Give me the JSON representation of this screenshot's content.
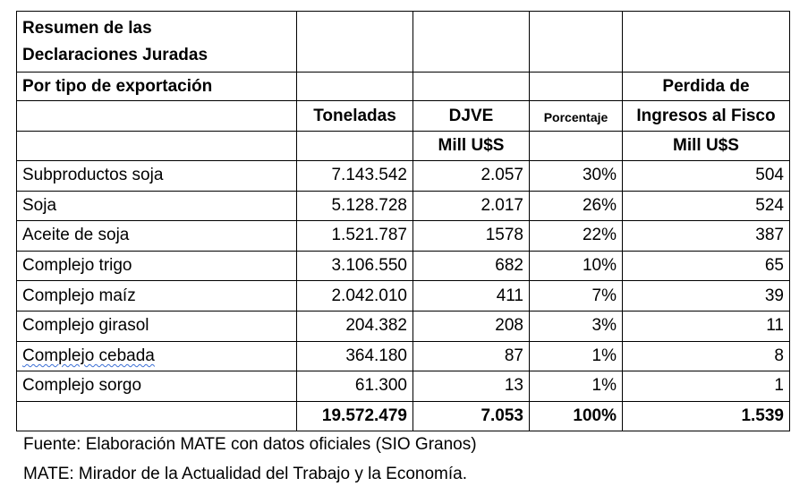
{
  "header": {
    "title_line1": "Resumen de las",
    "title_line2": "Declaraciones Juradas",
    "subtitle": "Por tipo de exportación",
    "perdida_line1": "Perdida de",
    "perdida_line2": "Ingresos al Fisco",
    "toneladas": "Toneladas",
    "djve": "DJVE",
    "porcentaje": "Porcentaje",
    "djve_unit": "Mill U$S",
    "perdida_unit": "Mill U$S"
  },
  "rows": [
    {
      "name": "Subproductos soja",
      "toneladas": "7.143.542",
      "djve": "2.057",
      "porcentaje": "30%",
      "perdida": "504"
    },
    {
      "name": "Soja",
      "toneladas": "5.128.728",
      "djve": "2.017",
      "porcentaje": "26%",
      "perdida": "524"
    },
    {
      "name": "Aceite de soja",
      "toneladas": "1.521.787",
      "djve": "1578",
      "porcentaje": "22%",
      "perdida": "387"
    },
    {
      "name": "Complejo trigo",
      "toneladas": "3.106.550",
      "djve": "682",
      "porcentaje": "10%",
      "perdida": "65"
    },
    {
      "name": "Complejo maíz",
      "toneladas": "2.042.010",
      "djve": "411",
      "porcentaje": "7%",
      "perdida": "39"
    },
    {
      "name": "Complejo girasol",
      "toneladas": "204.382",
      "djve": "208",
      "porcentaje": "3%",
      "perdida": "11"
    },
    {
      "name": "Complejo cebada",
      "toneladas": "364.180",
      "djve": "87",
      "porcentaje": "1%",
      "perdida": "8"
    },
    {
      "name": "Complejo sorgo",
      "toneladas": "61.300",
      "djve": "13",
      "porcentaje": "1%",
      "perdida": "1"
    }
  ],
  "total": {
    "toneladas": "19.572.479",
    "djve": "7.053",
    "porcentaje": "100%",
    "perdida": "1.539"
  },
  "footer": {
    "source": "Fuente: Elaboración MATE con datos oficiales (SIO Granos)",
    "note": "MATE: Mirador de la Actualidad del Trabajo y la Economía."
  },
  "colors": {
    "spellcheck_underline": "#3b6fd6"
  }
}
